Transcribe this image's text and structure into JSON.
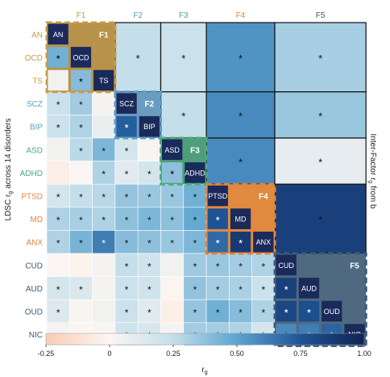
{
  "chart_data": {
    "type": "heatmap",
    "ylabel": "LDSC r",
    "ylabel_sub": "g",
    "ylabel_tail": "across 14 disorders",
    "right_label": "Inter-Factor r",
    "right_label_sub": "g",
    "right_label_tail": "from b",
    "colorbar_label": "r",
    "colorbar_label_sub": "g",
    "colorbar": {
      "min": -0.25,
      "max": 1.0,
      "ticks": [
        "-0.25",
        "0",
        "0.25",
        "0.50",
        "0.75",
        "1.00"
      ],
      "tick_values": [
        -0.25,
        0,
        0.25,
        0.5,
        0.75,
        1.0
      ]
    },
    "star_symbol": "*",
    "disorders": [
      "AN",
      "OCD",
      "TS",
      "SCZ",
      "BIP",
      "ASD",
      "ADHD",
      "PTSD",
      "MD",
      "ANX",
      "CUD",
      "AUD",
      "OUD",
      "NIC"
    ],
    "disorder_factor": [
      0,
      0,
      0,
      1,
      1,
      2,
      2,
      3,
      3,
      3,
      4,
      4,
      4,
      4
    ],
    "factors": [
      {
        "name": "F1",
        "color": "#c79a45",
        "fill": "#b8924a",
        "start": 0,
        "end": 2
      },
      {
        "name": "F2",
        "color": "#5b9ec9",
        "fill": "#6a9cc0",
        "start": 3,
        "end": 4
      },
      {
        "name": "F3",
        "color": "#4daa7c",
        "fill": "#4e9e7a",
        "start": 5,
        "end": 6
      },
      {
        "name": "F4",
        "color": "#e0843f",
        "fill": "#e08a40",
        "start": 7,
        "end": 9
      },
      {
        "name": "F5",
        "color": "#3a5a7a",
        "fill": "#4f6a80",
        "start": 10,
        "end": 13
      }
    ],
    "lower_rg": [
      [],
      [
        0.45
      ],
      [
        0.05,
        0.4
      ],
      [
        0.22,
        0.33,
        0.03
      ],
      [
        0.22,
        0.3,
        0.08,
        0.72
      ],
      [
        0.05,
        0.27,
        0.42,
        0.18,
        0.02
      ],
      [
        -0.05,
        0.01,
        0.3,
        0.12,
        0.18,
        0.38
      ],
      [
        0.18,
        0.25,
        0.28,
        0.36,
        0.35,
        0.35,
        0.45
      ],
      [
        0.3,
        0.32,
        0.3,
        0.38,
        0.42,
        0.38,
        0.48,
        0.75
      ],
      [
        0.3,
        0.43,
        0.62,
        0.4,
        0.38,
        0.35,
        0.42,
        0.68,
        0.88
      ],
      [
        0.01,
        -0.02,
        0.03,
        0.25,
        0.2,
        0.05,
        0.34,
        0.35,
        0.33,
        0.3
      ],
      [
        0.18,
        0.15,
        0.03,
        0.22,
        0.2,
        -0.01,
        0.37,
        0.33,
        0.31,
        0.22,
        0.85
      ],
      [
        0.14,
        0.02,
        0.05,
        0.22,
        0.12,
        -0.04,
        0.36,
        0.45,
        0.4,
        0.3,
        0.82,
        0.78
      ],
      [
        0.03,
        -0.01,
        0.02,
        0.2,
        0.17,
        0.03,
        0.33,
        0.33,
        0.3,
        0.18,
        0.58,
        0.62,
        0.7
      ]
    ],
    "lower_sig": [
      [],
      [
        1
      ],
      [
        0,
        1
      ],
      [
        1,
        1,
        0
      ],
      [
        1,
        1,
        0,
        1
      ],
      [
        0,
        1,
        1,
        1,
        0
      ],
      [
        0,
        0,
        1,
        1,
        1,
        1
      ],
      [
        1,
        1,
        1,
        1,
        1,
        1,
        1
      ],
      [
        1,
        1,
        1,
        1,
        1,
        1,
        1,
        1
      ],
      [
        1,
        1,
        1,
        1,
        1,
        1,
        1,
        1,
        1
      ],
      [
        0,
        0,
        0,
        1,
        1,
        0,
        1,
        1,
        1,
        1
      ],
      [
        1,
        1,
        0,
        1,
        1,
        0,
        1,
        1,
        1,
        1,
        1
      ],
      [
        1,
        0,
        0,
        1,
        1,
        0,
        1,
        1,
        1,
        1,
        1,
        1
      ],
      [
        0,
        0,
        0,
        1,
        1,
        0,
        1,
        1,
        1,
        1,
        1,
        1,
        1
      ]
    ],
    "inter_factor_rg": [
      [
        null,
        0.25,
        0.22,
        0.55,
        0.32
      ],
      [
        null,
        null,
        0.25,
        0.58,
        0.35
      ],
      [
        null,
        null,
        null,
        0.58,
        0.1
      ],
      [
        null,
        null,
        null,
        null,
        0.85
      ]
    ],
    "inter_factor_sig": [
      [
        null,
        1,
        1,
        1,
        1
      ],
      [
        null,
        null,
        1,
        1,
        1
      ],
      [
        null,
        null,
        null,
        1,
        1
      ],
      [
        null,
        null,
        null,
        null,
        1
      ]
    ]
  }
}
